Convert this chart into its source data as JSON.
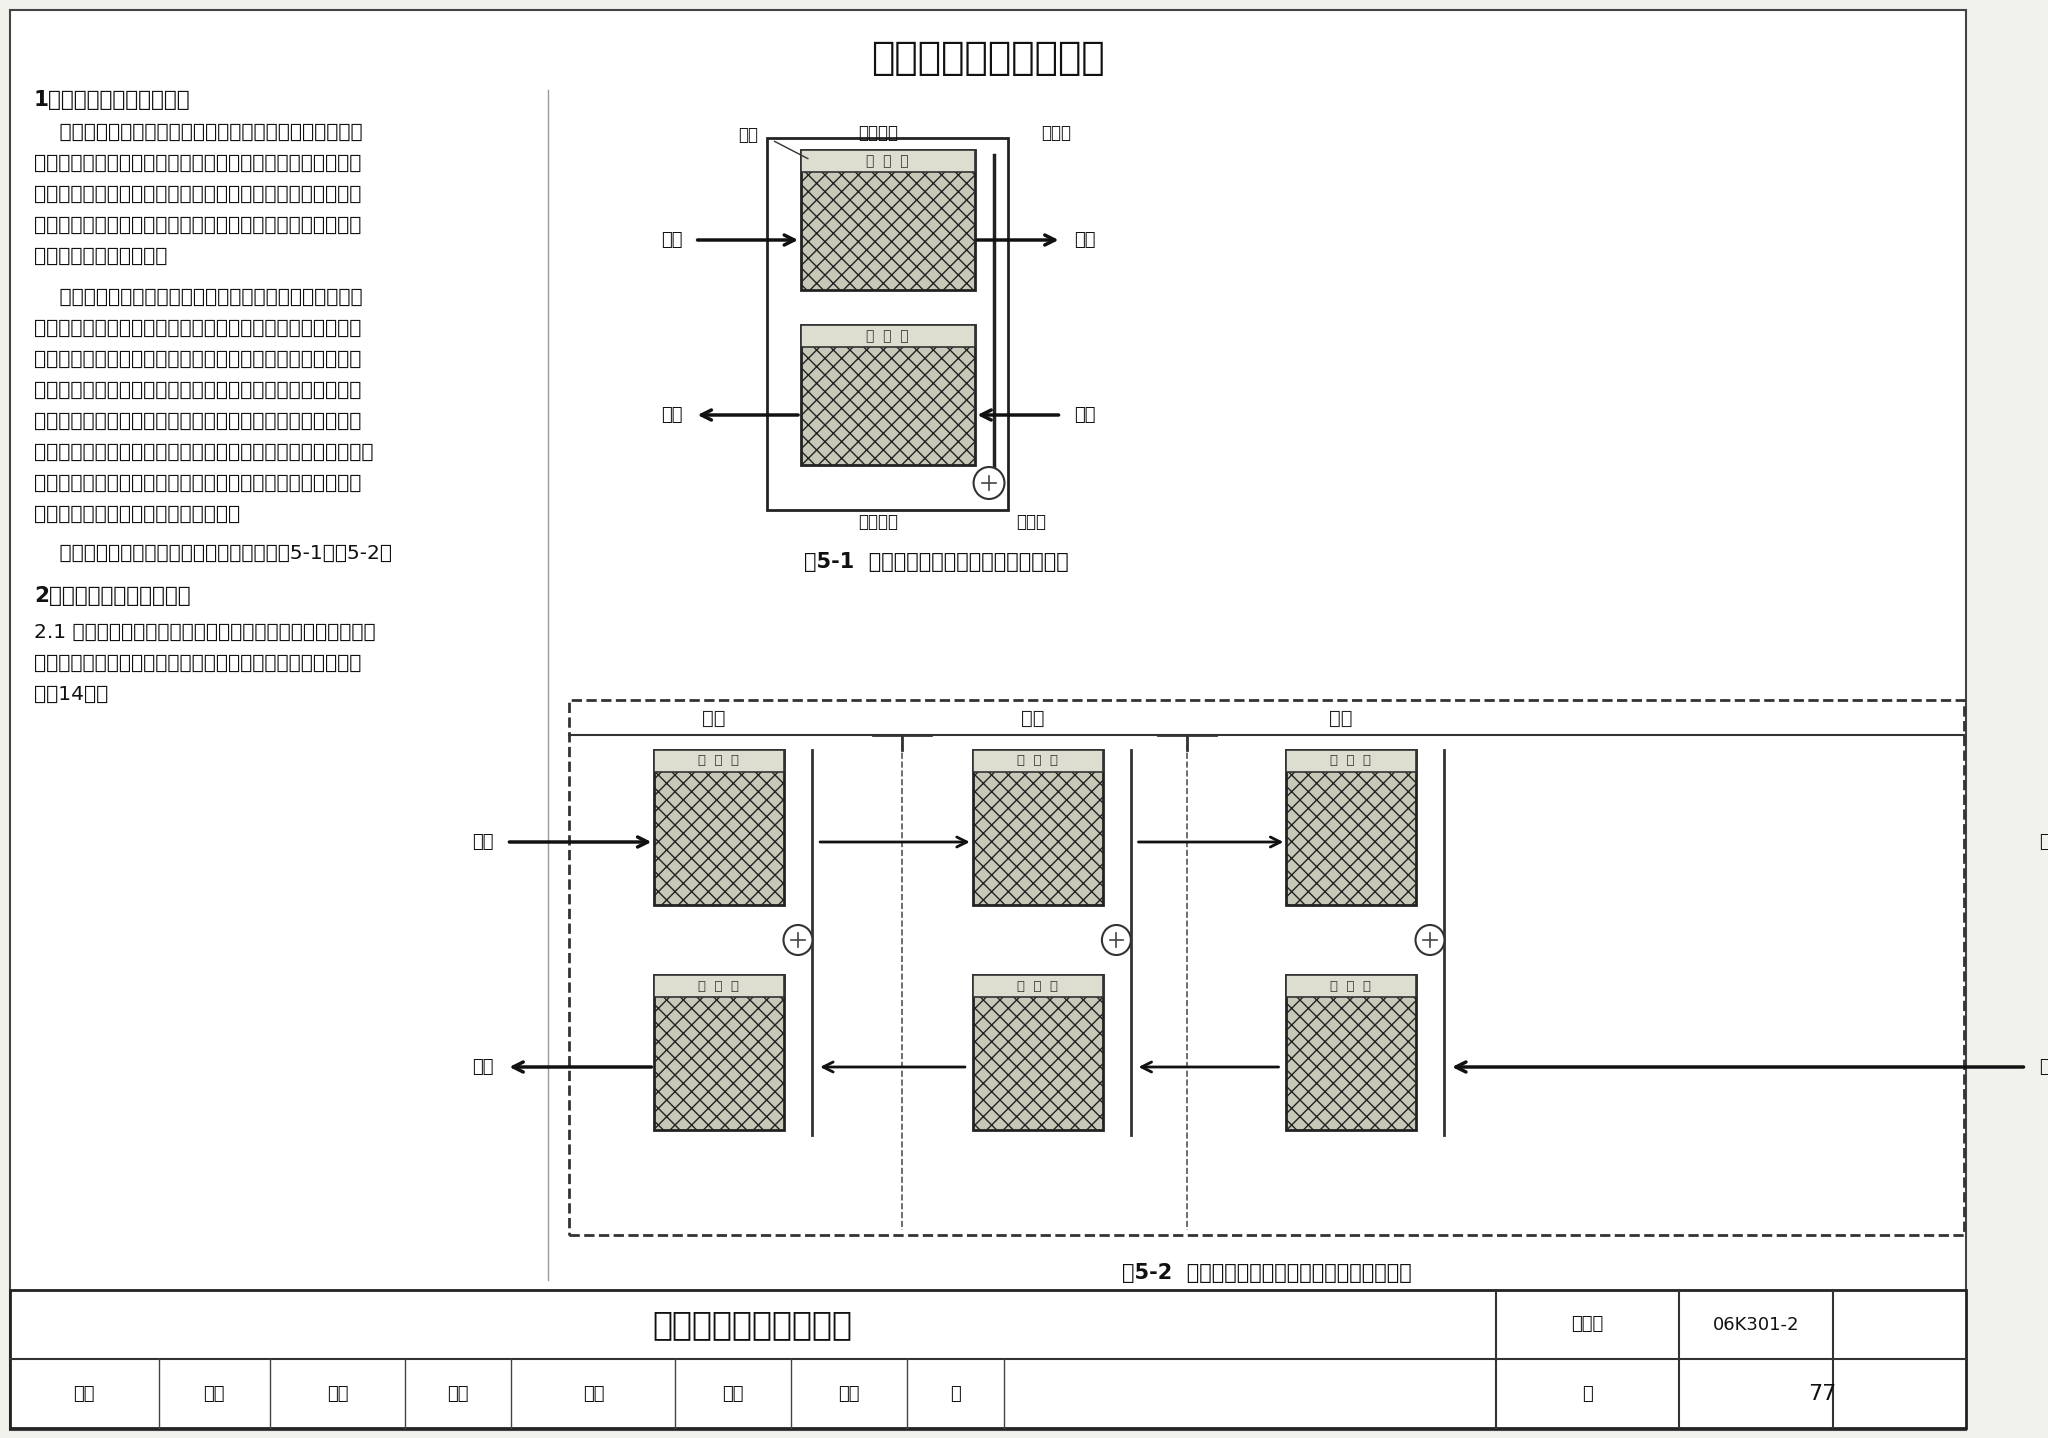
{
  "page_title": "溶液吸收式热回收说明",
  "bg_color": "#f2f2ed",
  "section1_title": "1．溶液吸收式热回收原理",
  "para1_lines": [
    "    当溶液表面的蒸气压力与直接接触空气的水蒸气分压力存",
    "在压差时，相互间既有热量的传递，还有质量的传递。溶液与",
    "空气进行热质交换时，将吸收或释放出相变的热量，使两者的",
    "温度发生变化。溶液吸收式热回收就是利用此原理，进行新风",
    "与排风之间的能量交换。"
  ],
  "para2_lines": [
    "    由溶液吸收式热回收器（有时也称基本模块）的工作原理",
    "图可以看出，在夏季，上部的排风与溶液在填料中直接接触，",
    "此时溶液温度降低、浓度增加（水蒸气分压力降低），同时排",
    "风被加热、加湿；低温浓缩的溶液进入下部新风填料中时，由",
    "于溶液的温度和表面水蒸气分压力均低于通过的新风，此时，",
    "溶液被加热且稀释，同时新风也被降温和除湿。冬季与之相反，",
    "排风被降温、除湿；新风被加热、加湿。溶液吸收式热回收就",
    "是通过以上过程实现能量的回收利用。"
  ],
  "para3_line": "    单、多级溶液吸收式热回收器工作原理见图5-1、图5-2。",
  "section2_title": "2．溶液吸收式热回收装置",
  "para4_lines": [
    "2.1 溶液吸收式热回收装置的基本形式通常由溶液吸收式热回",
    "收器、风机以及过滤器等组成，其装置系统流程图可参见本图",
    "集第14页。"
  ],
  "fig1_caption": "图5-1  单级溶液吸收式热回收器工作原理图",
  "fig2_caption": "图5-2  多级溶液吸收式热回收装置器工作原理图",
  "label_tian_liao": "填料",
  "label_shang_cao": "上溶液槽",
  "label_rong_ye_guan": "溶液管",
  "label_xia_cao": "下溶液槽",
  "label_pump": "溶液泵",
  "label_pai_feng": "排风",
  "label_xin_feng": "新风",
  "label_yi_ji": "一级",
  "label_er_ji": "二级",
  "label_san_ji": "三级",
  "footer_title": "溶液吸收式热回收说明",
  "footer_tu_ji_hao": "图集号",
  "footer_code": "06K301-2",
  "footer_shen_he": "审核",
  "footer_ji_wei": "季伟",
  "footer_jiao_dui": "校对",
  "footer_yuan_min": "原敏",
  "footer_tong_wen": "同文",
  "footer_she_ji": "设计",
  "footer_zhou_qun": "周群",
  "footer_liu": "柳",
  "footer_ye": "页",
  "footer_page_num": "77"
}
